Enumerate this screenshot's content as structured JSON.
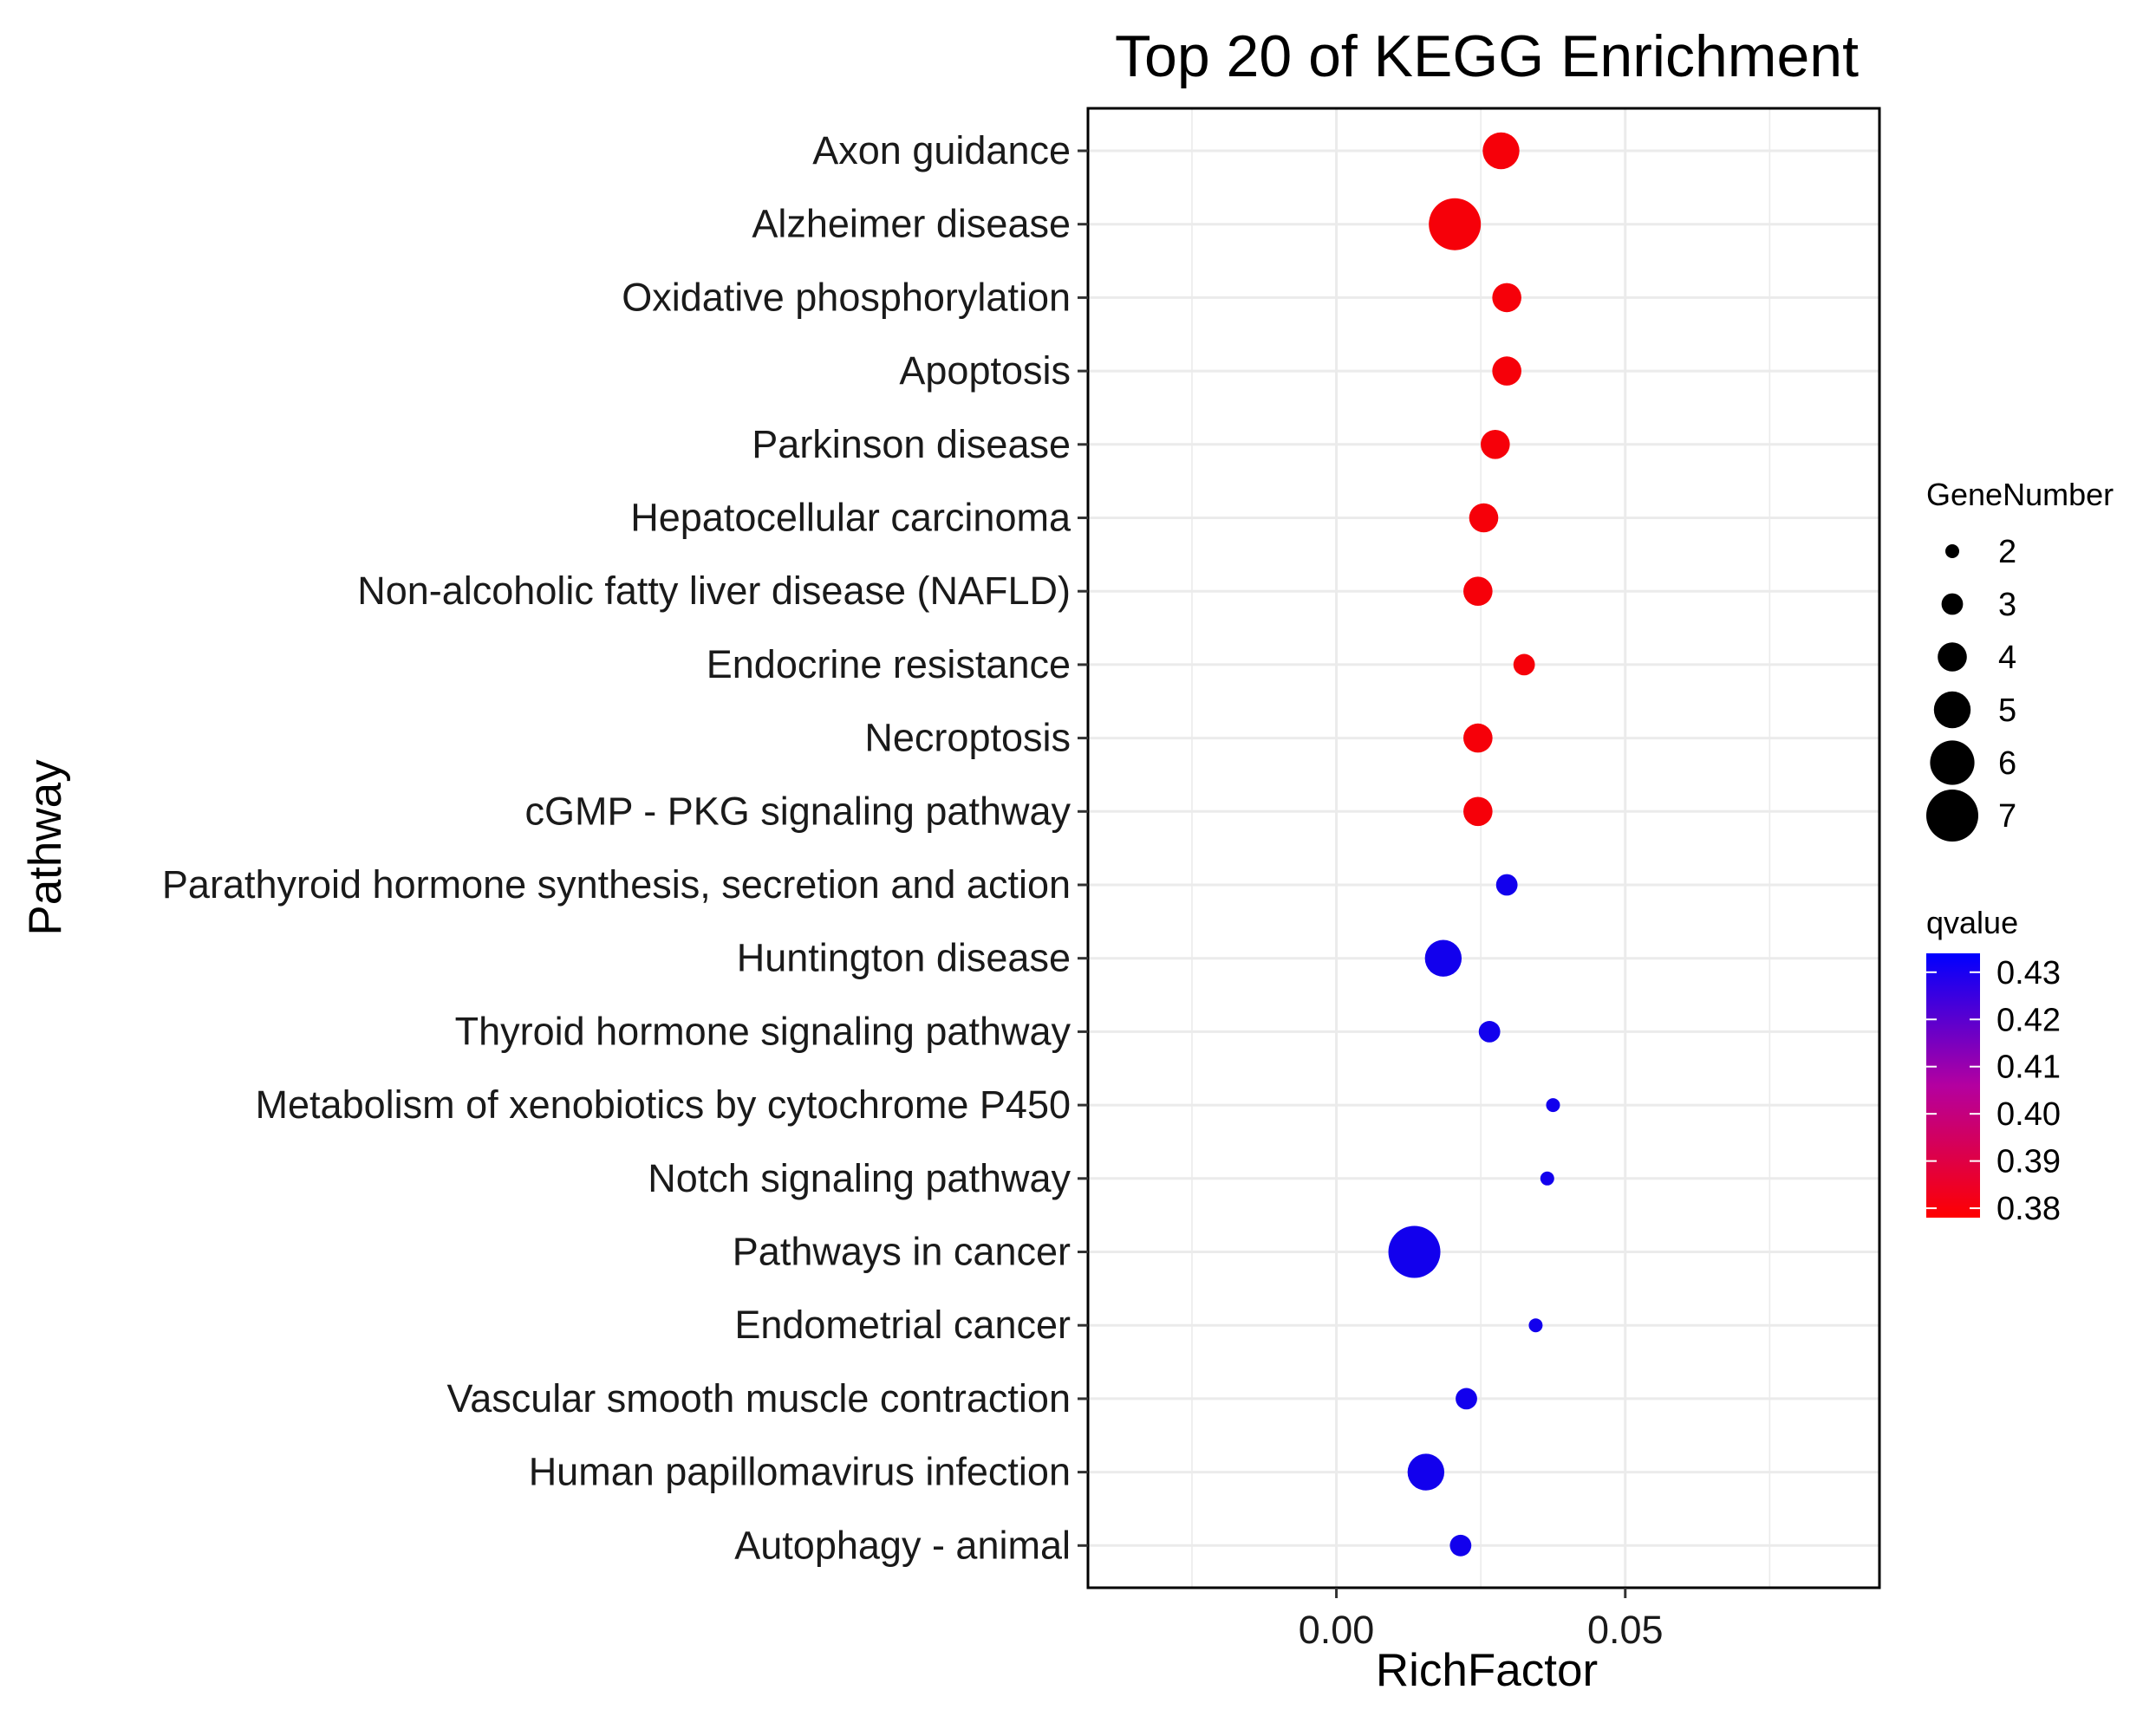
{
  "chart_data": {
    "type": "scatter",
    "title": "Top 20 of KEGG Enrichment",
    "xlabel": "RichFactor",
    "ylabel": "Pathway",
    "xlim": [
      -0.043,
      0.094
    ],
    "xticks": [
      0.0,
      0.05
    ],
    "xtick_labels": [
      "0.00",
      "0.05"
    ],
    "grid": true,
    "points": [
      {
        "pathway": "Axon guidance",
        "richFactor": 0.0285,
        "geneNumber": 5,
        "qvalue": 0.38
      },
      {
        "pathway": "Alzheimer disease",
        "richFactor": 0.0205,
        "geneNumber": 7,
        "qvalue": 0.38
      },
      {
        "pathway": "Oxidative phosphorylation",
        "richFactor": 0.0295,
        "geneNumber": 4,
        "qvalue": 0.38
      },
      {
        "pathway": "Apoptosis",
        "richFactor": 0.0295,
        "geneNumber": 4,
        "qvalue": 0.38
      },
      {
        "pathway": "Parkinson disease",
        "richFactor": 0.0275,
        "geneNumber": 4,
        "qvalue": 0.38
      },
      {
        "pathway": "Hepatocellular carcinoma",
        "richFactor": 0.0255,
        "geneNumber": 4,
        "qvalue": 0.38
      },
      {
        "pathway": "Non-alcoholic fatty liver disease (NAFLD)",
        "richFactor": 0.0245,
        "geneNumber": 4,
        "qvalue": 0.38
      },
      {
        "pathway": "Endocrine resistance",
        "richFactor": 0.0325,
        "geneNumber": 3,
        "qvalue": 0.38
      },
      {
        "pathway": "Necroptosis",
        "richFactor": 0.0245,
        "geneNumber": 4,
        "qvalue": 0.38
      },
      {
        "pathway": "cGMP - PKG signaling pathway",
        "richFactor": 0.0245,
        "geneNumber": 4,
        "qvalue": 0.38
      },
      {
        "pathway": "Parathyroid hormone synthesis, secretion and action",
        "richFactor": 0.0295,
        "geneNumber": 3,
        "qvalue": 0.43
      },
      {
        "pathway": "Huntington disease",
        "richFactor": 0.0185,
        "geneNumber": 5,
        "qvalue": 0.43
      },
      {
        "pathway": "Thyroid hormone signaling pathway",
        "richFactor": 0.0265,
        "geneNumber": 3,
        "qvalue": 0.43
      },
      {
        "pathway": "Metabolism of xenobiotics by cytochrome P450",
        "richFactor": 0.0375,
        "geneNumber": 2,
        "qvalue": 0.43
      },
      {
        "pathway": "Notch signaling pathway",
        "richFactor": 0.0365,
        "geneNumber": 2,
        "qvalue": 0.43
      },
      {
        "pathway": "Pathways in cancer",
        "richFactor": 0.0135,
        "geneNumber": 7,
        "qvalue": 0.43
      },
      {
        "pathway": "Endometrial cancer",
        "richFactor": 0.0345,
        "geneNumber": 2,
        "qvalue": 0.43
      },
      {
        "pathway": "Vascular smooth muscle contraction",
        "richFactor": 0.0225,
        "geneNumber": 3,
        "qvalue": 0.43
      },
      {
        "pathway": "Human papillomavirus infection",
        "richFactor": 0.0155,
        "geneNumber": 5,
        "qvalue": 0.43
      },
      {
        "pathway": "Autophagy - animal",
        "richFactor": 0.0215,
        "geneNumber": 3,
        "qvalue": 0.43
      }
    ],
    "legend_size": {
      "title": "GeneNumber",
      "entries": [
        2,
        3,
        4,
        5,
        6,
        7
      ]
    },
    "legend_color": {
      "title": "qvalue",
      "ticks": [
        "0.43",
        "0.42",
        "0.41",
        "0.40",
        "0.39",
        "0.38"
      ],
      "tick_values": [
        0.43,
        0.42,
        0.41,
        0.4,
        0.39,
        0.38
      ],
      "range": [
        0.378,
        0.434
      ],
      "low_color": "#FF0000",
      "high_color": "#0000FF"
    }
  }
}
